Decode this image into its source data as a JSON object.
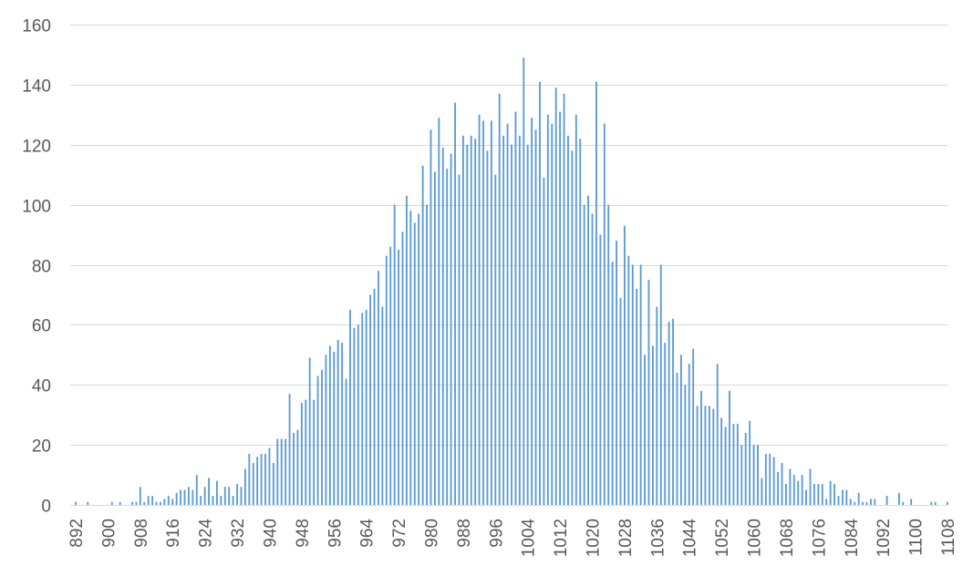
{
  "chart_data": {
    "type": "bar",
    "title": "",
    "xlabel": "",
    "ylabel": "",
    "ylim": [
      0,
      160
    ],
    "yticks": [
      0,
      20,
      40,
      60,
      80,
      100,
      120,
      140,
      160
    ],
    "xlim": [
      892,
      1108
    ],
    "xtick_step": 4,
    "xtick_labels": [
      "892",
      "900",
      "908",
      "916",
      "924",
      "932",
      "940",
      "948",
      "956",
      "964",
      "972",
      "980",
      "988",
      "996",
      "1004",
      "1012",
      "1020",
      "1028",
      "1036",
      "1044",
      "1052",
      "1060",
      "1068",
      "1076",
      "1084",
      "1092",
      "1100",
      "1108"
    ],
    "grid": true,
    "legend": "none",
    "bar_color": "#5b9bd5",
    "x": [
      892,
      893,
      894,
      895,
      896,
      897,
      898,
      899,
      900,
      901,
      902,
      903,
      904,
      905,
      906,
      907,
      908,
      909,
      910,
      911,
      912,
      913,
      914,
      915,
      916,
      917,
      918,
      919,
      920,
      921,
      922,
      923,
      924,
      925,
      926,
      927,
      928,
      929,
      930,
      931,
      932,
      933,
      934,
      935,
      936,
      937,
      938,
      939,
      940,
      941,
      942,
      943,
      944,
      945,
      946,
      947,
      948,
      949,
      950,
      951,
      952,
      953,
      954,
      955,
      956,
      957,
      958,
      959,
      960,
      961,
      962,
      963,
      964,
      965,
      966,
      967,
      968,
      969,
      970,
      971,
      972,
      973,
      974,
      975,
      976,
      977,
      978,
      979,
      980,
      981,
      982,
      983,
      984,
      985,
      986,
      987,
      988,
      989,
      990,
      991,
      992,
      993,
      994,
      995,
      996,
      997,
      998,
      999,
      1000,
      1001,
      1002,
      1003,
      1004,
      1005,
      1006,
      1007,
      1008,
      1009,
      1010,
      1011,
      1012,
      1013,
      1014,
      1015,
      1016,
      1017,
      1018,
      1019,
      1020,
      1021,
      1022,
      1023,
      1024,
      1025,
      1026,
      1027,
      1028,
      1029,
      1030,
      1031,
      1032,
      1033,
      1034,
      1035,
      1036,
      1037,
      1038,
      1039,
      1040,
      1041,
      1042,
      1043,
      1044,
      1045,
      1046,
      1047,
      1048,
      1049,
      1050,
      1051,
      1052,
      1053,
      1054,
      1055,
      1056,
      1057,
      1058,
      1059,
      1060,
      1061,
      1062,
      1063,
      1064,
      1065,
      1066,
      1067,
      1068,
      1069,
      1070,
      1071,
      1072,
      1073,
      1074,
      1075,
      1076,
      1077,
      1078,
      1079,
      1080,
      1081,
      1082,
      1083,
      1084,
      1085,
      1086,
      1087,
      1088,
      1089,
      1090,
      1091,
      1092,
      1093,
      1094,
      1095,
      1096,
      1097,
      1098,
      1099,
      1100,
      1101,
      1102,
      1103,
      1104,
      1105,
      1106,
      1107,
      1108
    ],
    "values": [
      1,
      0,
      0,
      1,
      0,
      0,
      0,
      0,
      0,
      1,
      0,
      1,
      0,
      0,
      1,
      1,
      6,
      1,
      3,
      3,
      1,
      1,
      2,
      3,
      2,
      4,
      5,
      5,
      6,
      5,
      10,
      3,
      6,
      9,
      3,
      8,
      3,
      6,
      6,
      3,
      7,
      6,
      12,
      17,
      14,
      16,
      17,
      17,
      19,
      14,
      22,
      22,
      22,
      37,
      24,
      25,
      34,
      35,
      49,
      35,
      43,
      45,
      50,
      53,
      51,
      55,
      54,
      42,
      65,
      59,
      60,
      64,
      65,
      70,
      72,
      78,
      66,
      83,
      86,
      100,
      85,
      91,
      103,
      98,
      94,
      97,
      113,
      100,
      125,
      111,
      129,
      119,
      112,
      117,
      134,
      110,
      123,
      120,
      123,
      122,
      130,
      128,
      118,
      128,
      110,
      137,
      123,
      127,
      120,
      131,
      123,
      149,
      120,
      129,
      125,
      141,
      109,
      130,
      127,
      139,
      131,
      137,
      123,
      118,
      130,
      122,
      100,
      103,
      97,
      141,
      90,
      127,
      100,
      81,
      88,
      69,
      93,
      83,
      80,
      72,
      80,
      50,
      75,
      53,
      66,
      80,
      54,
      61,
      62,
      44,
      50,
      40,
      47,
      52,
      33,
      38,
      33,
      33,
      32,
      47,
      29,
      26,
      38,
      27,
      27,
      20,
      24,
      28,
      20,
      20,
      9,
      17,
      17,
      16,
      11,
      14,
      7,
      12,
      10,
      8,
      10,
      5,
      12,
      7,
      7,
      7,
      2,
      8,
      7,
      3,
      5,
      5,
      2,
      1,
      4,
      1,
      1,
      2,
      2,
      0,
      0,
      3,
      0,
      0,
      4,
      1,
      0,
      2,
      0,
      0,
      0,
      0,
      1,
      1,
      0,
      0,
      1
    ]
  }
}
